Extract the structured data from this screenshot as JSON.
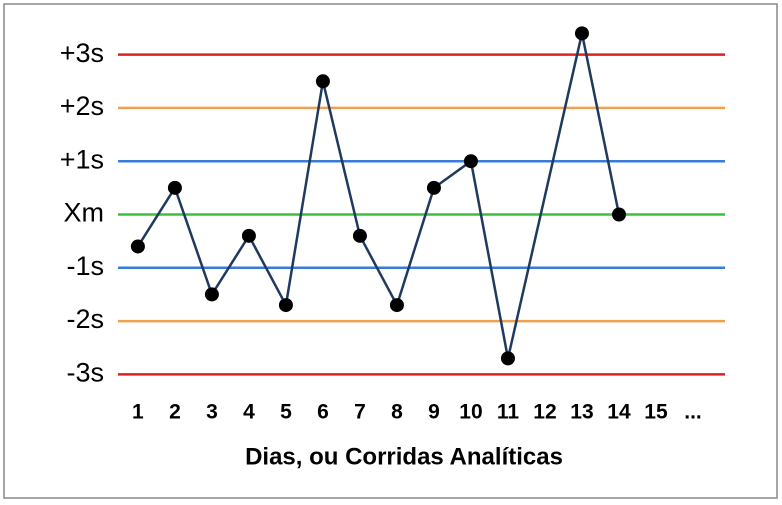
{
  "chart_data": {
    "type": "line",
    "x_label": "Dias, ou Corridas Analíticas",
    "x": [
      1,
      2,
      3,
      4,
      5,
      6,
      7,
      8,
      9,
      10,
      11,
      13,
      14
    ],
    "values": [
      -0.6,
      0.5,
      -1.5,
      -0.4,
      -1.7,
      2.5,
      -0.4,
      -1.7,
      0.5,
      1.0,
      -2.7,
      3.4,
      0
    ],
    "color": "#1f3a5f",
    "marker_color": "#000000",
    "xlim": [
      0.3,
      17
    ],
    "xticks": [
      1,
      2,
      3,
      4,
      5,
      6,
      7,
      8,
      9,
      10,
      11,
      12,
      13,
      14,
      15,
      {
        "value": 16,
        "label": "..."
      }
    ],
    "ylim": [
      -3.5,
      3.5
    ],
    "yticks": [
      {
        "value": 3,
        "label": "+3s"
      },
      {
        "value": 2,
        "label": "+2s"
      },
      {
        "value": 1,
        "label": "+1s"
      },
      {
        "value": 0,
        "label": "Xm"
      },
      {
        "value": -1,
        "label": "-1s"
      },
      {
        "value": -2,
        "label": "-2s"
      },
      {
        "value": -3,
        "label": "-3s"
      }
    ],
    "grid_colors": [
      "#e02020",
      "#f0a050",
      "#3a7bd5",
      "#3cc03c",
      "#3a7bd5",
      "#f0a050",
      "#e02020"
    ],
    "grid": true
  }
}
